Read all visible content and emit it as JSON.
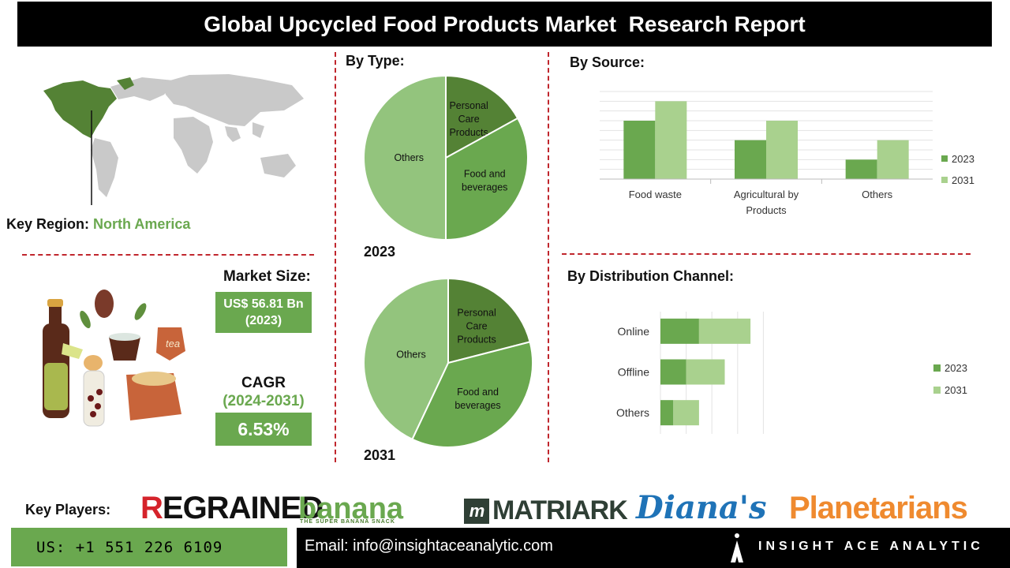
{
  "title": "Global Upcycled Food Products Market  Research Report",
  "key_region": {
    "label": "Key Region:",
    "value": "North America"
  },
  "market_size": {
    "label": "Market Size:",
    "value": "US$ 56.81 Bn",
    "year": "(2023)"
  },
  "cagr": {
    "label": "CAGR",
    "period": "(2024-2031)",
    "value": "6.53%"
  },
  "by_type": {
    "title": "By Type:",
    "year_2023": "2023",
    "year_2031": "2031"
  },
  "by_source": {
    "title": "By Source:"
  },
  "by_distribution": {
    "title": "By Distribution Channel:"
  },
  "key_players": {
    "label": "Key Players:",
    "logos": [
      "REGRAINED",
      "banana",
      "THE SUPER BANANA SNACK",
      "MATRIARK",
      "Diana's",
      "Planetarians"
    ]
  },
  "contact": {
    "phone": "US: +1 551 226 6109",
    "email": "Email: info@insightaceanalytic.com",
    "company": "INSIGHT ACE ANALYTIC"
  },
  "colors": {
    "dark_green": "#548235",
    "mid_green": "#6aa84f",
    "light_green": "#a9d18e",
    "pie_light": "#93c47d",
    "accent_red": "#c0262d"
  },
  "chart_data": [
    {
      "type": "pie",
      "title": "By Type:",
      "subtitle": "2023",
      "categories": [
        "Personal Care Products",
        "Food and beverages",
        "Others"
      ],
      "values": [
        17,
        33,
        50
      ]
    },
    {
      "type": "pie",
      "title": "By Type:",
      "subtitle": "2031",
      "categories": [
        "Personal Care Products",
        "Food and beverages",
        "Others"
      ],
      "values": [
        21,
        36,
        43
      ]
    },
    {
      "type": "bar",
      "title": "By Source:",
      "categories": [
        "Food waste",
        "Agricultural by Products",
        "Others"
      ],
      "series": [
        {
          "name": "2023",
          "values": [
            3,
            2,
            1
          ]
        },
        {
          "name": "2031",
          "values": [
            4,
            3,
            2
          ]
        }
      ],
      "ylim": [
        0,
        4.5
      ],
      "grid": true,
      "legend": "right"
    },
    {
      "type": "bar",
      "orientation": "horizontal",
      "stacked": true,
      "title": "By Distribution Channel:",
      "categories": [
        "Online",
        "Offline",
        "Others"
      ],
      "series": [
        {
          "name": "2023",
          "values": [
            3,
            2,
            1
          ]
        },
        {
          "name": "2031",
          "values": [
            4,
            3,
            2
          ]
        }
      ],
      "xlim": [
        0,
        8
      ],
      "grid": true,
      "legend": "right"
    }
  ]
}
